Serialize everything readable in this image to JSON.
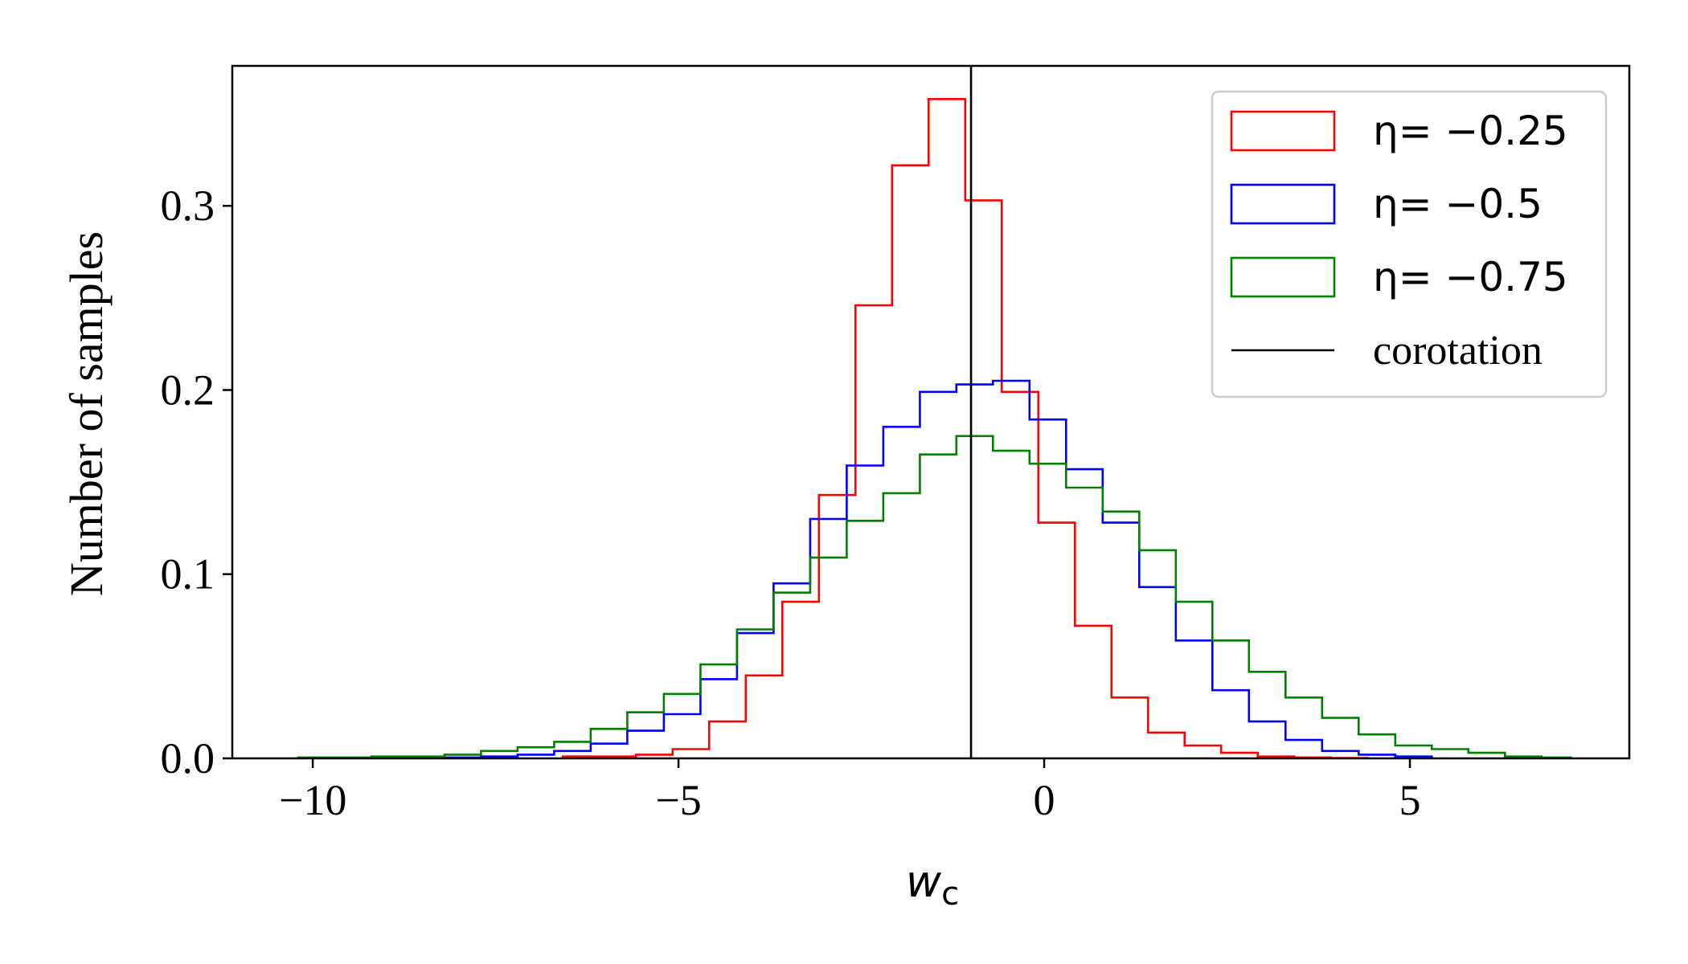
{
  "chart_data": {
    "type": "step-histogram",
    "xlabel": "w_c",
    "xlabel_main": "w",
    "xlabel_sub": "c",
    "ylabel": "Number of samples",
    "xlim": [
      -11.1,
      8.0
    ],
    "ylim": [
      0,
      0.376
    ],
    "xticks": [
      -10,
      -5,
      0,
      5
    ],
    "xtick_labels": [
      "−10",
      "−5",
      "0",
      "5"
    ],
    "yticks": [
      0.0,
      0.1,
      0.2,
      0.3
    ],
    "ytick_labels": [
      "0.0",
      "0.1",
      "0.2",
      "0.3"
    ],
    "grid": false,
    "legend_position": "top-right",
    "series": [
      {
        "name": "η= −0.25",
        "color": "#ff0000",
        "edges": [
          -6.58,
          -6.08,
          -5.58,
          -5.08,
          -4.58,
          -4.08,
          -3.58,
          -3.08,
          -2.58,
          -2.08,
          -1.58,
          -1.08,
          -0.58,
          -0.08,
          0.42,
          0.92,
          1.42,
          1.92,
          2.42,
          2.92,
          3.42,
          3.92,
          4.42
        ],
        "values": [
          0.001,
          0.001,
          0.002,
          0.005,
          0.02,
          0.045,
          0.085,
          0.143,
          0.246,
          0.322,
          0.358,
          0.303,
          0.199,
          0.128,
          0.072,
          0.033,
          0.014,
          0.007,
          0.003,
          0.001,
          0.0005,
          0.0002
        ]
      },
      {
        "name": "η= −0.5",
        "color": "#0000ff",
        "edges": [
          -8.2,
          -7.7,
          -7.2,
          -6.7,
          -6.2,
          -5.7,
          -5.2,
          -4.7,
          -4.2,
          -3.7,
          -3.2,
          -2.7,
          -2.2,
          -1.7,
          -1.2,
          -0.7,
          -0.2,
          0.3,
          0.8,
          1.3,
          1.8,
          2.3,
          2.8,
          3.3,
          3.8,
          4.3,
          4.8,
          5.3
        ],
        "values": [
          0.0005,
          0.001,
          0.002,
          0.004,
          0.008,
          0.015,
          0.024,
          0.043,
          0.068,
          0.095,
          0.13,
          0.159,
          0.18,
          0.199,
          0.203,
          0.205,
          0.184,
          0.157,
          0.128,
          0.093,
          0.064,
          0.037,
          0.02,
          0.01,
          0.004,
          0.002,
          0.001
        ]
      },
      {
        "name": "η= −0.75",
        "color": "#008000",
        "edges": [
          -10.2,
          -9.7,
          -9.2,
          -8.7,
          -8.2,
          -7.7,
          -7.2,
          -6.7,
          -6.2,
          -5.7,
          -5.2,
          -4.7,
          -4.2,
          -3.7,
          -3.2,
          -2.7,
          -2.2,
          -1.7,
          -1.2,
          -0.7,
          -0.2,
          0.3,
          0.8,
          1.3,
          1.8,
          2.3,
          2.8,
          3.3,
          3.8,
          4.3,
          4.8,
          5.3,
          5.8,
          6.3,
          6.8,
          7.2
        ],
        "values": [
          0.0005,
          0.0005,
          0.001,
          0.001,
          0.002,
          0.004,
          0.006,
          0.009,
          0.016,
          0.025,
          0.035,
          0.051,
          0.07,
          0.09,
          0.109,
          0.129,
          0.144,
          0.165,
          0.175,
          0.167,
          0.16,
          0.147,
          0.134,
          0.113,
          0.085,
          0.064,
          0.047,
          0.033,
          0.022,
          0.013,
          0.007,
          0.005,
          0.003,
          0.001,
          0.0005
        ]
      }
    ],
    "reference_line": {
      "name": "corotation",
      "x": -1.0,
      "color": "#000000"
    }
  },
  "legend": {
    "items": [
      {
        "label": "η= −0.25",
        "color": "#ff0000",
        "kind": "patch"
      },
      {
        "label": "η= −0.5",
        "color": "#0000ff",
        "kind": "patch"
      },
      {
        "label": "η= −0.75",
        "color": "#008000",
        "kind": "patch"
      },
      {
        "label": "corotation",
        "color": "#000000",
        "kind": "line"
      }
    ]
  }
}
